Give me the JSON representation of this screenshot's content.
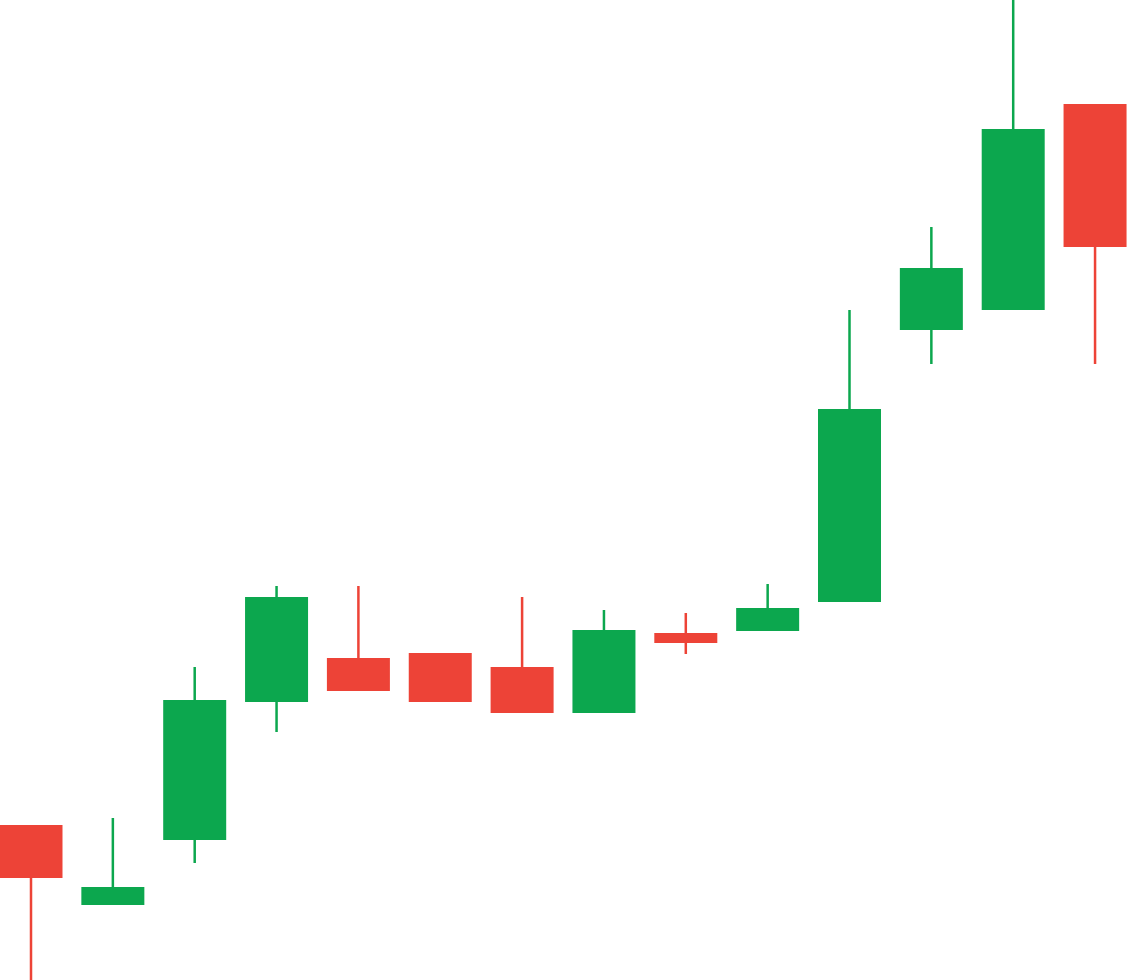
{
  "chart_data": {
    "type": "candlestick",
    "title": "",
    "xlabel": "",
    "ylabel": "",
    "grid": false,
    "legend": "none",
    "ylim": [
      0,
      980
    ],
    "colors": {
      "up": "#0ca74e",
      "down": "#ed4337"
    },
    "candles": [
      {
        "open": 155,
        "high": 155,
        "low": 0,
        "close": 102,
        "direction": "down"
      },
      {
        "open": 75,
        "high": 162,
        "low": 75,
        "close": 93,
        "direction": "up"
      },
      {
        "open": 140,
        "high": 313,
        "low": 117,
        "close": 280,
        "direction": "up"
      },
      {
        "open": 278,
        "high": 394,
        "low": 248,
        "close": 383,
        "direction": "up"
      },
      {
        "open": 322,
        "high": 394,
        "low": 289,
        "close": 289,
        "direction": "down"
      },
      {
        "open": 327,
        "high": 327,
        "low": 278,
        "close": 278,
        "direction": "down"
      },
      {
        "open": 313,
        "high": 383,
        "low": 267,
        "close": 267,
        "direction": "down"
      },
      {
        "open": 267,
        "high": 370,
        "low": 267,
        "close": 350,
        "direction": "up"
      },
      {
        "open": 347,
        "high": 367,
        "low": 326,
        "close": 337,
        "direction": "down"
      },
      {
        "open": 349,
        "high": 396,
        "low": 349,
        "close": 372,
        "direction": "up"
      },
      {
        "open": 378,
        "high": 670,
        "low": 378,
        "close": 571,
        "direction": "up"
      },
      {
        "open": 650,
        "high": 753,
        "low": 616,
        "close": 712,
        "direction": "up"
      },
      {
        "open": 670,
        "high": 980,
        "low": 670,
        "close": 851,
        "direction": "up"
      },
      {
        "open": 876,
        "high": 876,
        "low": 616,
        "close": 733,
        "direction": "down"
      }
    ]
  }
}
